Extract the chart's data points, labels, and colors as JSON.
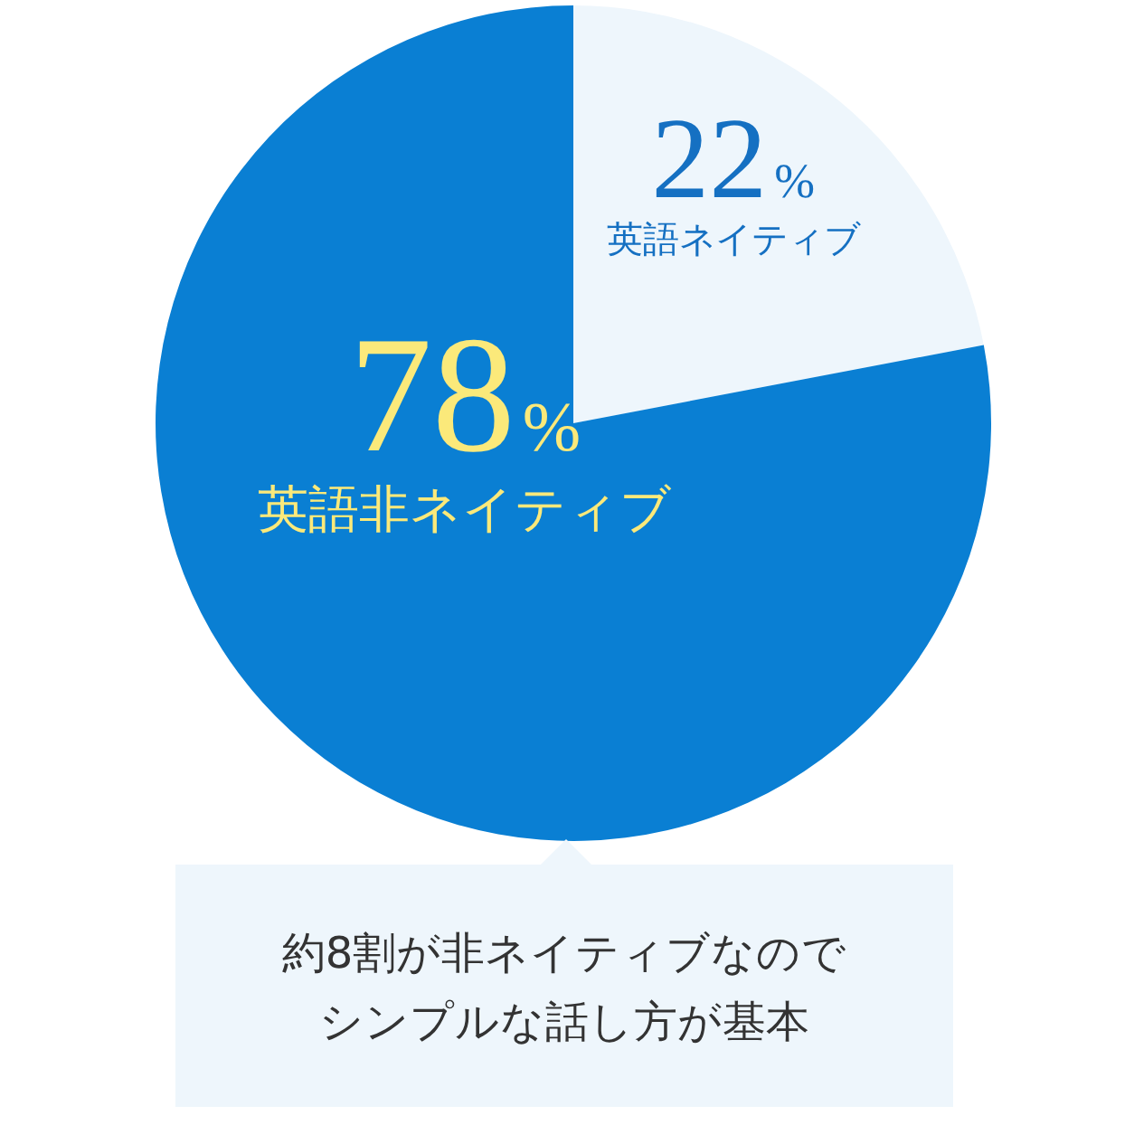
{
  "chart_data": {
    "type": "pie",
    "categories": [
      "英語ネイティブ",
      "英語非ネイティブ"
    ],
    "values": [
      22,
      78
    ],
    "colors": [
      "#eef6fc",
      "#0a7fd3"
    ],
    "value_labels": [
      "22%",
      "78%"
    ],
    "annotations": [
      "約8割が非ネイティブなのでシンプルな話し方が基本"
    ]
  }
}
